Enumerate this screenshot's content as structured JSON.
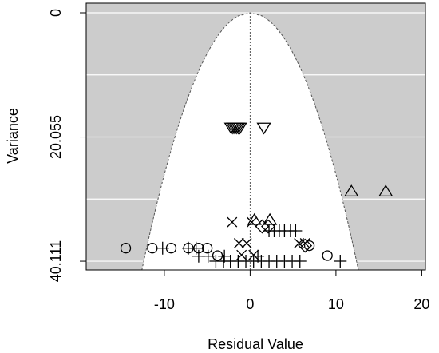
{
  "chart_data": {
    "type": "scatter",
    "subtype": "funnel-plot",
    "title": "",
    "xlabel": "Residual Value",
    "ylabel": "Variance",
    "xlim": [
      -19,
      20
    ],
    "ylim": [
      0,
      41
    ],
    "y_reversed": true,
    "x_ticks": [
      -10,
      0,
      10,
      20
    ],
    "x_tick_labels": [
      "-10",
      "0",
      "10",
      "20"
    ],
    "y_ticks": [
      0,
      20.055,
      40.111
    ],
    "y_tick_labels": [
      "0",
      "20.055",
      "40.111"
    ],
    "grid_y": [
      0,
      10.03,
      20.055,
      30.08,
      40.111
    ],
    "funnel": {
      "center": 0,
      "edge_at_max_variance": 12.4
    },
    "colors": {
      "outside_funnel": "#cccccc",
      "inside_funnel": "#ffffff",
      "grid": "#ffffff",
      "marks": "#000000"
    },
    "points": [
      {
        "x": -2.2,
        "y": 18.6,
        "marker": "triangle-down"
      },
      {
        "x": -2.0,
        "y": 18.6,
        "marker": "triangle-down"
      },
      {
        "x": -1.8,
        "y": 18.6,
        "marker": "triangle-down"
      },
      {
        "x": -1.6,
        "y": 18.6,
        "marker": "triangle-down"
      },
      {
        "x": -1.4,
        "y": 18.6,
        "marker": "triangle-down"
      },
      {
        "x": -1.2,
        "y": 18.6,
        "marker": "triangle-down"
      },
      {
        "x": 1.6,
        "y": 18.6,
        "marker": "triangle-down"
      },
      {
        "x": 11.8,
        "y": 28.8,
        "marker": "triangle-up"
      },
      {
        "x": 15.8,
        "y": 28.8,
        "marker": "triangle-up"
      },
      {
        "x": 0.5,
        "y": 33.4,
        "marker": "triangle-up"
      },
      {
        "x": 2.3,
        "y": 33.4,
        "marker": "triangle-up"
      },
      {
        "x": -2.1,
        "y": 33.8,
        "marker": "x"
      },
      {
        "x": 0.2,
        "y": 33.8,
        "marker": "x"
      },
      {
        "x": -1.3,
        "y": 37.2,
        "marker": "x"
      },
      {
        "x": -0.4,
        "y": 37.2,
        "marker": "x"
      },
      {
        "x": 5.7,
        "y": 37.2,
        "marker": "x"
      },
      {
        "x": 6.4,
        "y": 37.2,
        "marker": "x"
      },
      {
        "x": -1.0,
        "y": 39.1,
        "marker": "x"
      },
      {
        "x": 0.4,
        "y": 39.1,
        "marker": "x"
      },
      {
        "x": 1.4,
        "y": 34.5,
        "marker": "diamond"
      },
      {
        "x": 2.1,
        "y": 34.5,
        "marker": "diamond"
      },
      {
        "x": 6.4,
        "y": 37.6,
        "marker": "diamond"
      },
      {
        "x": 2.2,
        "y": 35.2,
        "marker": "plus"
      },
      {
        "x": 2.8,
        "y": 35.2,
        "marker": "plus"
      },
      {
        "x": 3.4,
        "y": 35.2,
        "marker": "plus"
      },
      {
        "x": 4.0,
        "y": 35.2,
        "marker": "plus"
      },
      {
        "x": 4.7,
        "y": 35.2,
        "marker": "plus"
      },
      {
        "x": 5.3,
        "y": 35.2,
        "marker": "plus"
      },
      {
        "x": -10.2,
        "y": 38.0,
        "marker": "plus"
      },
      {
        "x": -7.2,
        "y": 38.0,
        "marker": "plus"
      },
      {
        "x": -6.3,
        "y": 38.0,
        "marker": "plus"
      },
      {
        "x": -6.0,
        "y": 39.3,
        "marker": "plus"
      },
      {
        "x": -4.9,
        "y": 39.3,
        "marker": "plus"
      },
      {
        "x": -3.0,
        "y": 39.3,
        "marker": "plus"
      },
      {
        "x": 0.9,
        "y": 39.3,
        "marker": "plus"
      },
      {
        "x": -4.0,
        "y": 40.1,
        "marker": "plus"
      },
      {
        "x": -3.1,
        "y": 40.1,
        "marker": "plus"
      },
      {
        "x": -2.3,
        "y": 40.1,
        "marker": "plus"
      },
      {
        "x": -1.4,
        "y": 40.1,
        "marker": "plus"
      },
      {
        "x": -0.5,
        "y": 40.1,
        "marker": "plus"
      },
      {
        "x": 0.4,
        "y": 40.1,
        "marker": "plus"
      },
      {
        "x": 1.3,
        "y": 40.1,
        "marker": "plus"
      },
      {
        "x": 2.2,
        "y": 40.1,
        "marker": "plus"
      },
      {
        "x": 3.1,
        "y": 40.1,
        "marker": "plus"
      },
      {
        "x": 4.0,
        "y": 40.1,
        "marker": "plus"
      },
      {
        "x": 4.9,
        "y": 40.1,
        "marker": "plus"
      },
      {
        "x": 5.8,
        "y": 40.1,
        "marker": "plus"
      },
      {
        "x": 10.5,
        "y": 40.1,
        "marker": "plus"
      },
      {
        "x": -14.5,
        "y": 38.0,
        "marker": "circle"
      },
      {
        "x": -11.4,
        "y": 38.0,
        "marker": "circle"
      },
      {
        "x": -9.2,
        "y": 38.0,
        "marker": "circle"
      },
      {
        "x": -7.2,
        "y": 38.0,
        "marker": "circle"
      },
      {
        "x": -6.0,
        "y": 38.0,
        "marker": "circle"
      },
      {
        "x": -5.0,
        "y": 38.0,
        "marker": "circle"
      },
      {
        "x": 6.9,
        "y": 37.6,
        "marker": "circle"
      },
      {
        "x": 9.0,
        "y": 39.2,
        "marker": "circle"
      },
      {
        "x": -3.8,
        "y": 39.2,
        "marker": "circle"
      }
    ]
  }
}
